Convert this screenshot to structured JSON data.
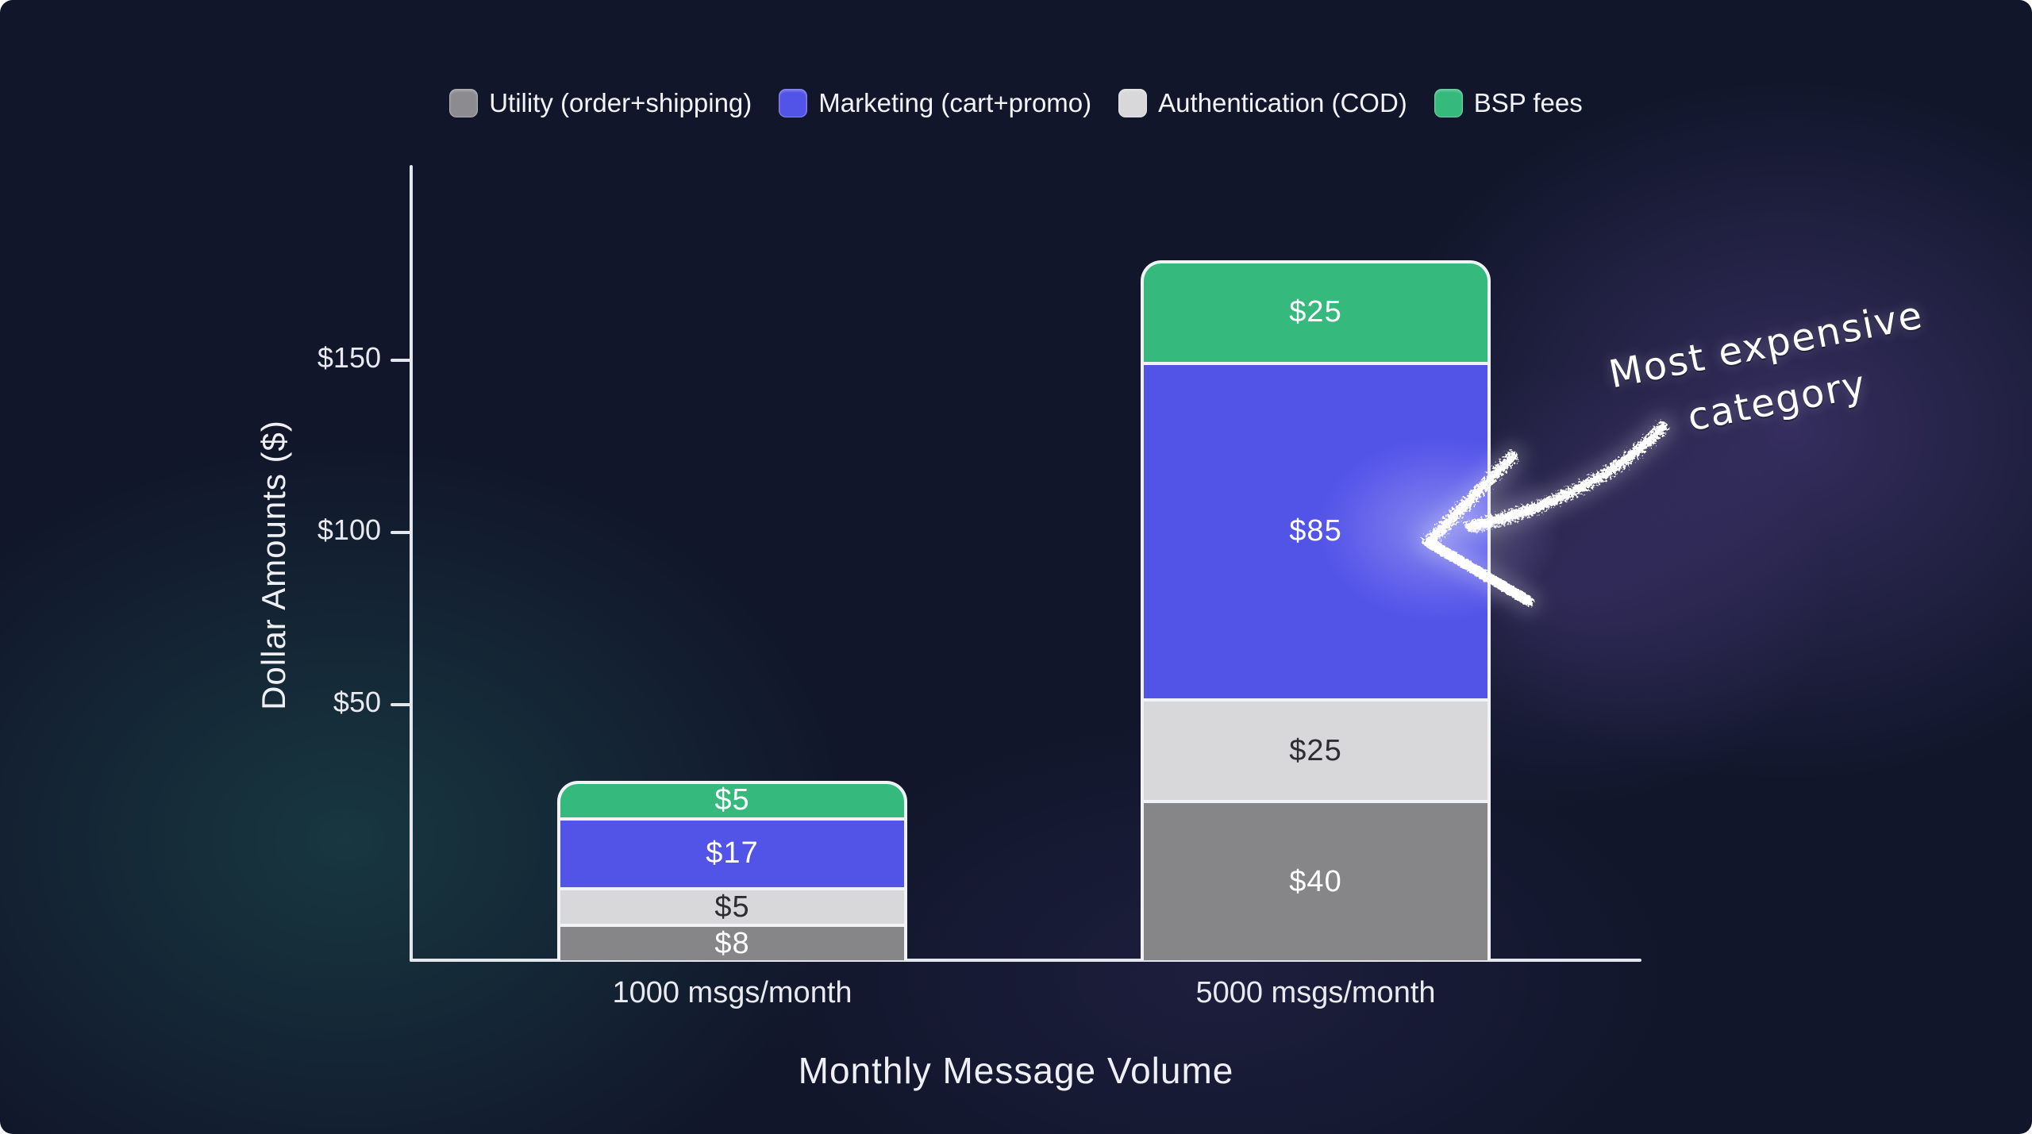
{
  "background": {
    "base_color": "#11162a",
    "teal_glow": "#2b9680",
    "purple_glow": "#8764d7",
    "axis_color": "#e3e6ec"
  },
  "legend": {
    "items": [
      {
        "label": "Utility (order+shipping)",
        "color": "#8b8b90"
      },
      {
        "label": "Marketing (cart+promo)",
        "color": "#5254e8"
      },
      {
        "label": "Authentication (COD)",
        "color": "#d8d8da"
      },
      {
        "label": "BSP fees",
        "color": "#35b97c"
      }
    ]
  },
  "chart_data": {
    "type": "bar",
    "stacked": true,
    "title": "",
    "categories": [
      "1000 msgs/month",
      "5000 msgs/month"
    ],
    "series": [
      {
        "name": "Utility (order+shipping)",
        "color": "#868689",
        "label_color": "#ffffff",
        "values": [
          8,
          40
        ],
        "labels": [
          "$8",
          "$40"
        ]
      },
      {
        "name": "Marketing (cart+promo)",
        "color": "#5254e8",
        "label_color": "#ffffff",
        "values": [
          17,
          85
        ],
        "labels": [
          "$17",
          "$85"
        ]
      },
      {
        "name": "Authentication (COD)",
        "color": "#d8d8da",
        "label_color": "#2d2d32",
        "values": [
          5,
          25
        ],
        "labels": [
          "$5",
          "$25"
        ]
      },
      {
        "name": "BSP fees",
        "color": "#35b97c",
        "label_color": "#ffffff",
        "values": [
          5,
          25
        ],
        "labels": [
          "$5",
          "$25"
        ]
      }
    ],
    "stack_order_bottom_to_top": [
      "Utility (order+shipping)",
      "Authentication (COD)",
      "Marketing (cart+promo)",
      "BSP fees"
    ],
    "bar_totals": [
      35,
      175
    ],
    "xlabel": "Monthly Message Volume",
    "ylabel": "Dollar Amounts ($)",
    "yticks": [
      "$50",
      "$100",
      "$150"
    ],
    "ylim": [
      0,
      175
    ],
    "grid": false,
    "legend_position": "top"
  },
  "annotation": {
    "line1": "Most expensive",
    "line2": "category",
    "arrow_target": "Marketing (cart+promo) $85 segment"
  }
}
